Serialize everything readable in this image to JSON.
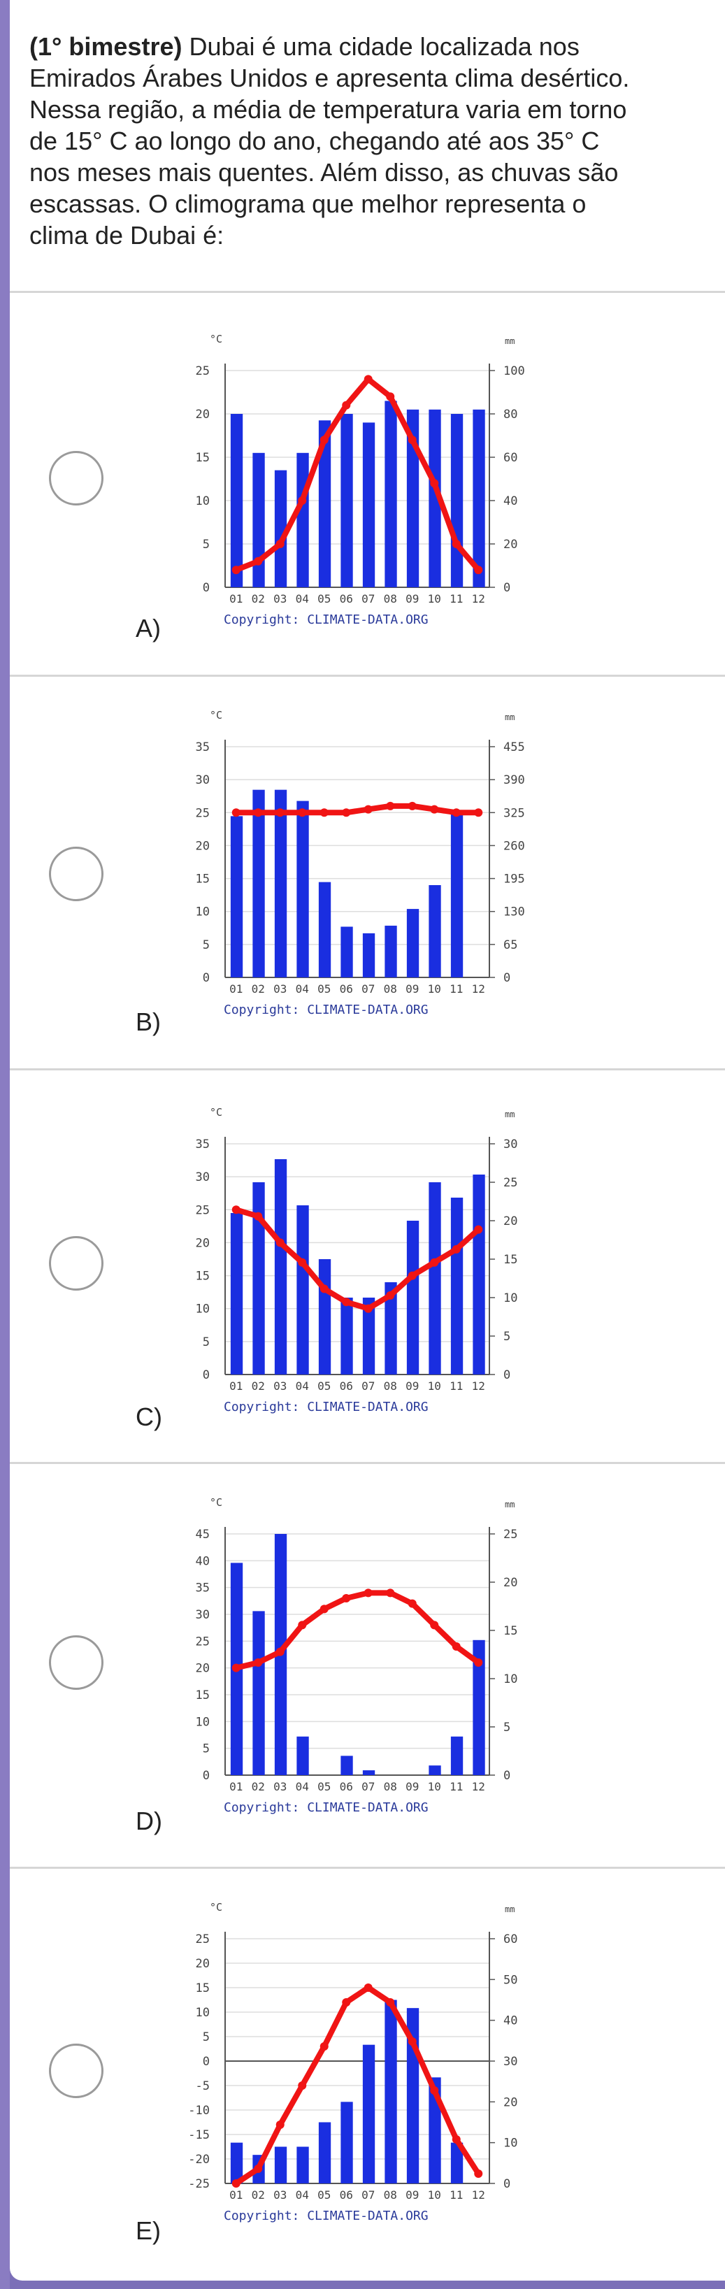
{
  "question": {
    "label": "(1° bimestre)",
    "lines": [
      " Dubai é uma cidade localizada nos",
      "Emirados Árabes Unidos e apresenta clima desértico.",
      "Nessa região, a média de temperatura varia em torno",
      "de 15° C ao longo do ano, chegando até aos 35° C",
      "nos meses mais quentes. Além disso, as chuvas são",
      "escassas. O climograma que melhor representa o",
      "clima de Dubai é:"
    ]
  },
  "months": [
    "01",
    "02",
    "03",
    "04",
    "05",
    "06",
    "07",
    "08",
    "09",
    "10",
    "11",
    "12"
  ],
  "copyright": "Copyright: CLIMATE-DATA.ORG",
  "colors": {
    "bar": "#1a2ee0",
    "line": "#f01414",
    "grid": "#dddddd",
    "axis": "#555555",
    "tick": "#444444"
  },
  "options": [
    {
      "letter": "A)",
      "chart_data": {
        "type": "bar",
        "categories": [
          "01",
          "02",
          "03",
          "04",
          "05",
          "06",
          "07",
          "08",
          "09",
          "10",
          "11",
          "12"
        ],
        "series": [
          {
            "type": "bar",
            "axis": "right",
            "values": [
              80,
              62,
              54,
              62,
              77,
              80,
              76,
              86,
              82,
              82,
              80,
              82
            ]
          },
          {
            "type": "line",
            "axis": "left",
            "values": [
              2,
              3,
              5,
              10,
              17,
              21,
              24,
              22,
              17,
              12,
              5,
              2
            ]
          }
        ],
        "ylabel_left": "°C",
        "ylabel_right": "mm",
        "ylim_left": [
          0,
          25
        ],
        "ylim_right": [
          0,
          100
        ],
        "yticks_left": [
          "25",
          "20",
          "15",
          "10",
          "5",
          "0"
        ],
        "yticks_right": [
          "100",
          "80",
          "60",
          "40",
          "20",
          "0"
        ]
      }
    },
    {
      "letter": "B)",
      "chart_data": {
        "type": "bar",
        "categories": [
          "01",
          "02",
          "03",
          "04",
          "05",
          "06",
          "07",
          "08",
          "09",
          "10",
          "11",
          "12"
        ],
        "series": [
          {
            "type": "bar",
            "axis": "right",
            "values": [
              318,
              370,
              370,
              348,
              188,
              100,
              87,
              102,
              135,
              182,
              322,
              0
            ]
          },
          {
            "type": "line",
            "axis": "left",
            "values": [
              25,
              25,
              25,
              25,
              25,
              25,
              25.5,
              26,
              26,
              25.5,
              25,
              25
            ]
          }
        ],
        "ylabel_left": "°C",
        "ylabel_right": "mm",
        "ylim_left": [
          0,
          35
        ],
        "ylim_right": [
          0,
          455
        ],
        "yticks_left": [
          "35",
          "30",
          "25",
          "20",
          "15",
          "10",
          "5",
          "0"
        ],
        "yticks_right": [
          "455",
          "390",
          "325",
          "260",
          "195",
          "130",
          "65",
          "0"
        ]
      }
    },
    {
      "letter": "C)",
      "chart_data": {
        "type": "bar",
        "categories": [
          "01",
          "02",
          "03",
          "04",
          "05",
          "06",
          "07",
          "08",
          "09",
          "10",
          "11",
          "12"
        ],
        "series": [
          {
            "type": "bar",
            "axis": "right",
            "values": [
              21,
              25,
              28,
              22,
              15,
              10,
              10,
              12,
              20,
              25,
              23,
              26
            ]
          },
          {
            "type": "line",
            "axis": "left",
            "values": [
              25,
              24,
              20,
              17,
              13,
              11,
              10,
              12,
              15,
              17,
              19,
              22
            ]
          }
        ],
        "ylabel_left": "°C",
        "ylabel_right": "mm",
        "ylim_left": [
          0,
          35
        ],
        "ylim_right": [
          0,
          30
        ],
        "yticks_left": [
          "35",
          "30",
          "25",
          "20",
          "15",
          "10",
          "5",
          "0"
        ],
        "yticks_right": [
          "30",
          "25",
          "20",
          "15",
          "10",
          "5",
          "0"
        ]
      }
    },
    {
      "letter": "D)",
      "chart_data": {
        "type": "bar",
        "categories": [
          "01",
          "02",
          "03",
          "04",
          "05",
          "06",
          "07",
          "08",
          "09",
          "10",
          "11",
          "12"
        ],
        "series": [
          {
            "type": "bar",
            "axis": "right",
            "values": [
              22,
              17,
              25,
              4,
              0,
              2,
              0.5,
              0,
              0,
              1,
              4,
              14
            ]
          },
          {
            "type": "line",
            "axis": "left",
            "values": [
              20,
              21,
              23,
              28,
              31,
              33,
              34,
              34,
              32,
              28,
              24,
              21
            ]
          }
        ],
        "ylabel_left": "°C",
        "ylabel_right": "mm",
        "ylim_left": [
          0,
          45
        ],
        "ylim_right": [
          0,
          25
        ],
        "yticks_left": [
          "45",
          "40",
          "35",
          "30",
          "25",
          "20",
          "15",
          "10",
          "5",
          "0"
        ],
        "yticks_right": [
          "25",
          "20",
          "15",
          "10",
          "5",
          "0"
        ]
      }
    },
    {
      "letter": "E)",
      "chart_data": {
        "type": "bar",
        "categories": [
          "01",
          "02",
          "03",
          "04",
          "05",
          "06",
          "07",
          "08",
          "09",
          "10",
          "11",
          "12"
        ],
        "series": [
          {
            "type": "bar",
            "axis": "right",
            "values": [
              10,
              7,
              9,
              9,
              15,
              20,
              34,
              45,
              43,
              26,
              10,
              0
            ]
          },
          {
            "type": "line",
            "axis": "left",
            "values": [
              -25,
              -22,
              -13,
              -5,
              3,
              12,
              15,
              12,
              4,
              -6,
              -16,
              -23
            ]
          }
        ],
        "ylabel_left": "°C",
        "ylabel_right": "mm",
        "ylim_left": [
          -25,
          25
        ],
        "ylim_right": [
          0,
          60
        ],
        "yticks_left": [
          "25",
          "20",
          "15",
          "10",
          "5",
          "0",
          "-5",
          "-10",
          "-15",
          "-20",
          "-25"
        ],
        "yticks_right": [
          "60",
          "50",
          "40",
          "30",
          "20",
          "10",
          "0"
        ]
      }
    }
  ]
}
